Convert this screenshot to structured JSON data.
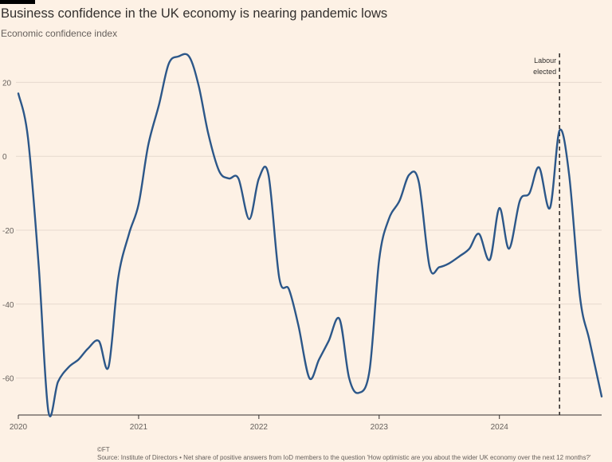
{
  "header": {
    "title": "Business confidence in the UK economy is nearing pandemic lows",
    "subtitle": "Economic confidence index"
  },
  "footer": {
    "credit": "©FT",
    "source": "Source: Institute of Directors • Net share of positive answers from IoD members to the question 'How optimistic are you about the wider UK economy over the next 12 months?'"
  },
  "colors": {
    "background": "#fdf1e5",
    "line": "#2c5789",
    "grid": "#e6d9ce",
    "axis": "#33302e",
    "text": "#66605c"
  },
  "chart_data": {
    "type": "line",
    "title": "Business confidence in the UK economy is nearing pandemic lows",
    "ylabel": "Economic confidence index",
    "xlabel": "",
    "xlim": [
      2020.0,
      2024.85
    ],
    "ylim": [
      -70,
      30
    ],
    "y_ticks": [
      20,
      0,
      -20,
      -40,
      -60
    ],
    "y_tick_labels": [
      "20",
      "0",
      "-20",
      "-40",
      "-60"
    ],
    "x_ticks": [
      2020,
      2021,
      2022,
      2023,
      2024
    ],
    "x_tick_labels": [
      "2020",
      "2021",
      "2022",
      "2023",
      "2024"
    ],
    "annotation": {
      "label_line1": "Labour",
      "label_line2": "elected",
      "x": 2024.5
    },
    "series": [
      {
        "name": "Economic confidence index",
        "points": [
          [
            2020.0,
            17
          ],
          [
            2020.08,
            5
          ],
          [
            2020.17,
            -30
          ],
          [
            2020.25,
            -69
          ],
          [
            2020.33,
            -61
          ],
          [
            2020.42,
            -57
          ],
          [
            2020.5,
            -55
          ],
          [
            2020.58,
            -52
          ],
          [
            2020.67,
            -50
          ],
          [
            2020.75,
            -57
          ],
          [
            2020.83,
            -33
          ],
          [
            2020.92,
            -21
          ],
          [
            2021.0,
            -13
          ],
          [
            2021.08,
            3
          ],
          [
            2021.17,
            14
          ],
          [
            2021.25,
            25
          ],
          [
            2021.33,
            27
          ],
          [
            2021.42,
            27
          ],
          [
            2021.5,
            19
          ],
          [
            2021.58,
            6
          ],
          [
            2021.67,
            -4
          ],
          [
            2021.75,
            -6
          ],
          [
            2021.83,
            -6
          ],
          [
            2021.92,
            -17
          ],
          [
            2022.0,
            -6
          ],
          [
            2022.08,
            -5
          ],
          [
            2022.17,
            -33
          ],
          [
            2022.25,
            -36
          ],
          [
            2022.33,
            -46
          ],
          [
            2022.42,
            -60
          ],
          [
            2022.5,
            -55
          ],
          [
            2022.58,
            -50
          ],
          [
            2022.67,
            -44
          ],
          [
            2022.75,
            -60
          ],
          [
            2022.83,
            -64
          ],
          [
            2022.92,
            -58
          ],
          [
            2023.0,
            -28
          ],
          [
            2023.08,
            -17
          ],
          [
            2023.17,
            -12
          ],
          [
            2023.25,
            -5
          ],
          [
            2023.33,
            -7
          ],
          [
            2023.42,
            -30
          ],
          [
            2023.5,
            -30
          ],
          [
            2023.58,
            -29
          ],
          [
            2023.67,
            -27
          ],
          [
            2023.75,
            -25
          ],
          [
            2023.83,
            -21
          ],
          [
            2023.92,
            -28
          ],
          [
            2024.0,
            -14
          ],
          [
            2024.08,
            -25
          ],
          [
            2024.17,
            -12
          ],
          [
            2024.25,
            -10
          ],
          [
            2024.33,
            -3
          ],
          [
            2024.42,
            -14
          ],
          [
            2024.5,
            7
          ],
          [
            2024.58,
            -5
          ],
          [
            2024.67,
            -38
          ],
          [
            2024.75,
            -50
          ],
          [
            2024.85,
            -65
          ]
        ]
      }
    ]
  }
}
